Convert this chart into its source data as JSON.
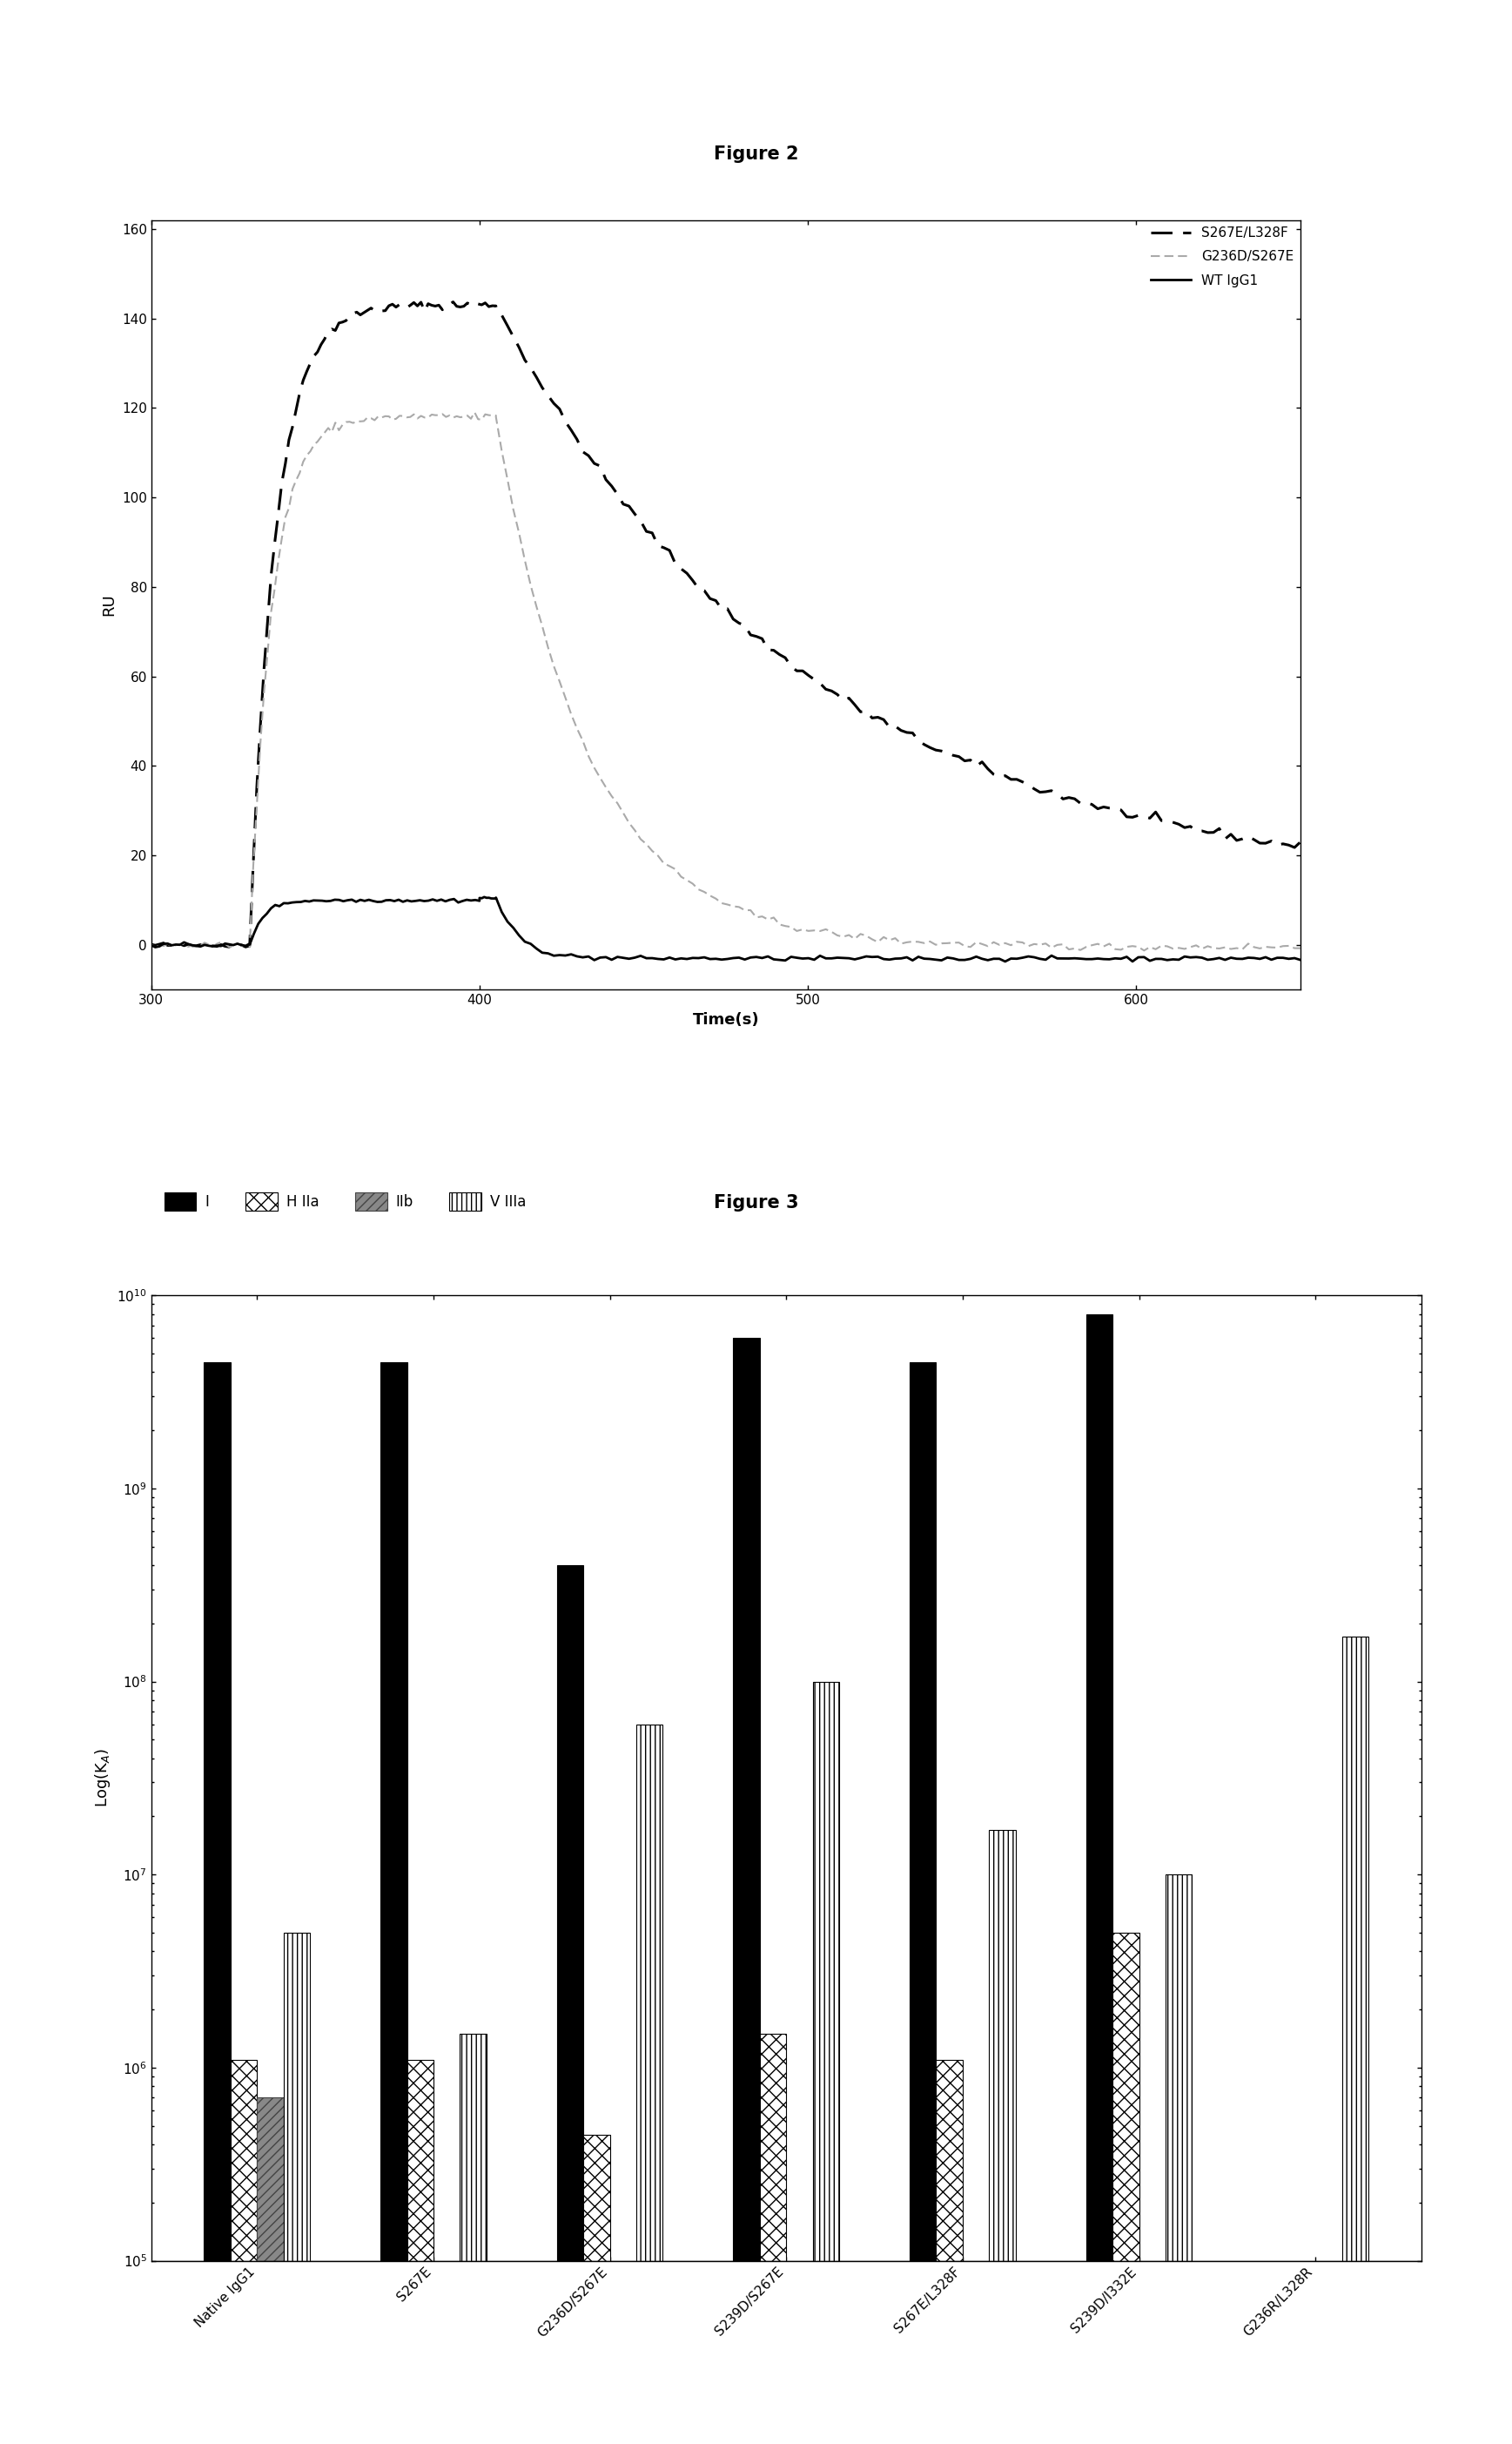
{
  "fig2_title": "Figure 2",
  "fig3_title": "Figure 3",
  "fig2_xlabel": "Time(s)",
  "fig2_ylabel": "RU",
  "fig2_xlim": [
    300,
    650
  ],
  "fig2_ylim": [
    -10,
    162
  ],
  "fig2_xticks": [
    300,
    400,
    500,
    600
  ],
  "fig2_yticks": [
    0,
    20,
    40,
    60,
    80,
    100,
    120,
    140,
    160
  ],
  "fig2_legend": [
    "S267E/L328F",
    "G236D/S267E",
    "WT IgG1"
  ],
  "fig3_categories": [
    "Native IgG1",
    "S267E",
    "G236D/S267E",
    "S239D/S267E",
    "S267E/L328F",
    "S239D/I332E",
    "G236R/L328R"
  ],
  "fig3_ylabel": "Log(K_A)",
  "fig3_legend": [
    "I",
    "H IIa",
    "IIb",
    "V IIIa"
  ],
  "bar_I": [
    4500000000.0,
    4500000000.0,
    400000000.0,
    6000000000.0,
    4500000000.0,
    8000000000.0,
    null
  ],
  "bar_H2a": [
    1100000.0,
    1100000.0,
    450000.0,
    1500000.0,
    1100000.0,
    5000000.0,
    null
  ],
  "bar_IIb": [
    700000.0,
    null,
    null,
    null,
    null,
    null,
    null
  ],
  "bar_V3a": [
    5000000.0,
    1500000.0,
    60000000.0,
    100000000.0,
    17000000.0,
    10000000.0,
    170000000.0
  ]
}
